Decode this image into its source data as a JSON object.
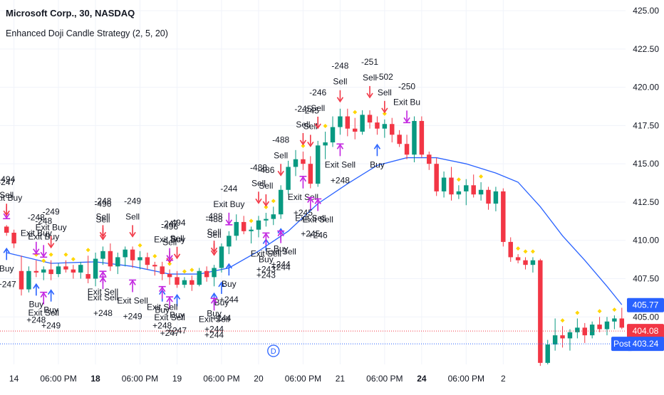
{
  "header": {
    "title": "Microsoft Corp., 30, NASDAQ",
    "subtitle": "Enhanced Doji Candle Strategy (2, 5, 20)"
  },
  "chart_data": {
    "type": "candlestick",
    "title": "Microsoft Corp., 30, NASDAQ",
    "subtitle": "Enhanced Doji Candle Strategy (2, 5, 20)",
    "y_axis": {
      "position": "right",
      "range": [
        401.9,
        425.7
      ],
      "ticks": [
        425.0,
        422.5,
        420.0,
        417.5,
        415.0,
        412.5,
        410.0,
        407.5,
        405.0
      ],
      "tick_labels": [
        "425.00",
        "422.50",
        "420.00",
        "417.50",
        "415.00",
        "412.50",
        "410.00",
        "407.50",
        "405.00"
      ]
    },
    "x_axis": {
      "labels": [
        {
          "text": "14",
          "bar": 1,
          "bold": false
        },
        {
          "text": "06:00 PM",
          "bar": 7,
          "bold": false
        },
        {
          "text": "18",
          "bar": 12,
          "bold": true
        },
        {
          "text": "06:00 PM",
          "bar": 18,
          "bold": false
        },
        {
          "text": "19",
          "bar": 23,
          "bold": false
        },
        {
          "text": "06:00 PM",
          "bar": 29,
          "bold": false
        },
        {
          "text": "20",
          "bar": 34,
          "bold": false
        },
        {
          "text": "06:00 PM",
          "bar": 40,
          "bold": false
        },
        {
          "text": "21",
          "bar": 45,
          "bold": false
        },
        {
          "text": "06:00 PM",
          "bar": 51,
          "bold": false
        },
        {
          "text": "24",
          "bar": 56,
          "bold": true
        },
        {
          "text": "06:00 PM",
          "bar": 62,
          "bold": false
        },
        {
          "text": "2",
          "bar": 67,
          "bold": false
        }
      ]
    },
    "candles": [
      [
        410.9,
        411.0,
        410.3,
        410.5
      ],
      [
        410.5,
        410.7,
        409.5,
        409.8
      ],
      [
        408.0,
        409.0,
        406.4,
        406.8
      ],
      [
        406.8,
        408.3,
        406.6,
        408.0
      ],
      [
        408.0,
        408.7,
        407.6,
        407.9
      ],
      [
        407.9,
        408.3,
        407.4,
        408.1
      ],
      [
        408.1,
        408.7,
        407.4,
        407.8
      ],
      [
        407.8,
        408.5,
        407.6,
        408.3
      ],
      [
        408.3,
        408.7,
        407.9,
        408.1
      ],
      [
        408.1,
        408.4,
        407.5,
        407.9
      ],
      [
        407.9,
        408.6,
        407.5,
        408.4
      ],
      [
        407.8,
        409.0,
        407.2,
        407.5
      ],
      [
        407.5,
        409.2,
        407.0,
        408.8
      ],
      [
        408.8,
        409.6,
        408.4,
        409.3
      ],
      [
        409.3,
        409.8,
        408.0,
        408.3
      ],
      [
        408.3,
        409.2,
        407.8,
        408.9
      ],
      [
        408.9,
        409.6,
        408.3,
        409.4
      ],
      [
        409.4,
        409.6,
        408.2,
        408.7
      ],
      [
        408.7,
        409.3,
        408.1,
        408.9
      ],
      [
        408.9,
        409.2,
        408.1,
        408.4
      ],
      [
        408.4,
        408.6,
        407.7,
        408.3
      ],
      [
        408.3,
        408.6,
        407.4,
        407.8
      ],
      [
        407.8,
        408.1,
        407.1,
        407.6
      ],
      [
        407.6,
        408.0,
        406.9,
        407.1
      ],
      [
        407.1,
        407.6,
        406.9,
        407.4
      ],
      [
        407.4,
        407.7,
        406.7,
        407.1
      ],
      [
        407.1,
        408.2,
        407.0,
        408.0
      ],
      [
        408.0,
        408.3,
        407.3,
        407.6
      ],
      [
        407.6,
        408.4,
        407.0,
        408.2
      ],
      [
        408.2,
        409.8,
        407.9,
        409.6
      ],
      [
        409.6,
        410.6,
        409.1,
        410.3
      ],
      [
        410.3,
        411.7,
        410.0,
        411.2
      ],
      [
        411.2,
        411.6,
        410.4,
        410.6
      ],
      [
        410.6,
        410.9,
        409.8,
        410.7
      ],
      [
        410.7,
        411.6,
        410.2,
        411.3
      ],
      [
        411.3,
        411.8,
        410.9,
        411.4
      ],
      [
        411.4,
        412.2,
        411.0,
        411.7
      ],
      [
        411.7,
        413.6,
        411.4,
        413.3
      ],
      [
        413.3,
        415.2,
        413.0,
        414.8
      ],
      [
        414.8,
        415.9,
        414.2,
        415.3
      ],
      [
        415.3,
        415.8,
        414.6,
        415.0
      ],
      [
        415.0,
        415.5,
        413.4,
        413.7
      ],
      [
        413.7,
        416.5,
        413.5,
        416.2
      ],
      [
        416.2,
        417.1,
        415.3,
        416.4
      ],
      [
        416.4,
        418.1,
        416.1,
        417.4
      ],
      [
        417.4,
        418.6,
        416.9,
        418.1
      ],
      [
        418.1,
        418.6,
        416.8,
        417.3
      ],
      [
        417.3,
        418.0,
        416.6,
        417.1
      ],
      [
        417.1,
        418.5,
        416.9,
        418.2
      ],
      [
        418.2,
        418.5,
        417.3,
        417.7
      ],
      [
        417.7,
        418.1,
        416.9,
        417.3
      ],
      [
        417.3,
        417.9,
        416.7,
        417.6
      ],
      [
        417.6,
        418.0,
        416.4,
        416.9
      ],
      [
        416.9,
        417.2,
        416.1,
        416.3
      ],
      [
        416.3,
        416.9,
        415.3,
        415.6
      ],
      [
        415.6,
        418.1,
        415.1,
        417.8
      ],
      [
        417.8,
        418.1,
        415.4,
        415.6
      ],
      [
        415.6,
        415.8,
        414.6,
        415.0
      ],
      [
        415.0,
        415.4,
        412.9,
        413.2
      ],
      [
        413.2,
        414.5,
        412.8,
        414.1
      ],
      [
        414.1,
        414.8,
        412.6,
        413.0
      ],
      [
        413.0,
        413.6,
        412.7,
        413.2
      ],
      [
        413.2,
        414.0,
        412.3,
        413.6
      ],
      [
        413.6,
        414.3,
        412.8,
        413.0
      ],
      [
        413.0,
        413.8,
        412.6,
        413.3
      ],
      [
        413.3,
        413.5,
        412.0,
        412.4
      ],
      [
        412.4,
        413.5,
        411.9,
        413.2
      ],
      [
        413.2,
        413.4,
        409.6,
        409.9
      ],
      [
        409.9,
        410.2,
        408.6,
        408.9
      ],
      [
        408.9,
        409.1,
        408.5,
        408.7
      ],
      [
        408.7,
        408.9,
        408.1,
        408.4
      ],
      [
        408.4,
        408.9,
        407.9,
        408.7
      ],
      [
        408.7,
        408.8,
        401.8,
        402.0
      ],
      [
        402.0,
        403.5,
        401.9,
        403.2
      ],
      [
        403.2,
        404.9,
        402.8,
        403.8
      ],
      [
        403.8,
        404.4,
        403.0,
        403.6
      ],
      [
        403.6,
        404.2,
        402.8,
        404.0
      ],
      [
        404.0,
        404.9,
        403.6,
        404.3
      ],
      [
        404.3,
        404.6,
        403.3,
        403.8
      ],
      [
        403.8,
        404.7,
        403.6,
        404.5
      ],
      [
        404.5,
        405.0,
        404.0,
        404.2
      ],
      [
        404.2,
        405.0,
        403.8,
        404.7
      ],
      [
        404.7,
        405.1,
        404.2,
        404.9
      ],
      [
        404.9,
        405.6,
        404.2,
        404.3
      ]
    ],
    "moving_average_line": {
      "color": "#2962ff",
      "points": [
        [
          0,
          409.2
        ],
        [
          6,
          408.5
        ],
        [
          12,
          408.6
        ],
        [
          17,
          408.3
        ],
        [
          22,
          407.8
        ],
        [
          26,
          407.8
        ],
        [
          30,
          408.2
        ],
        [
          34,
          409.3
        ],
        [
          38,
          410.6
        ],
        [
          42,
          412.4
        ],
        [
          46,
          413.7
        ],
        [
          50,
          414.9
        ],
        [
          54,
          415.4
        ],
        [
          58,
          415.4
        ],
        [
          62,
          415.0
        ],
        [
          66,
          414.4
        ],
        [
          69,
          413.8
        ],
        [
          72,
          412.2
        ],
        [
          75,
          410.3
        ],
        [
          78,
          408.7
        ],
        [
          81,
          407.0
        ],
        [
          83,
          405.8
        ]
      ]
    },
    "signals": [
      {
        "bar": 0,
        "type": "exit-buy-down",
        "lines": [
          "-247",
          "Exit Buy"
        ]
      },
      {
        "bar": 0,
        "type": "sell-down",
        "lines": [
          "-494",
          "Sell"
        ]
      },
      {
        "bar": 0,
        "type": "buy-up",
        "lines": [
          "Buy",
          "+247"
        ]
      },
      {
        "bar": 4,
        "type": "exit-buy-down",
        "lines": [
          "-248",
          "Exit Buy"
        ]
      },
      {
        "bar": 5,
        "type": "exit-buy-down",
        "lines": [
          "-248",
          "Exit Buy"
        ]
      },
      {
        "bar": 6,
        "type": "sell-down",
        "lines": [
          "-249",
          "Exit Buy"
        ]
      },
      {
        "bar": 4,
        "type": "buy-up",
        "lines": [
          "Buy",
          "+248"
        ]
      },
      {
        "bar": 6,
        "type": "buy-up",
        "lines": [
          "Buy",
          "+249"
        ]
      },
      {
        "bar": 5,
        "type": "exit-sell-up",
        "lines": [
          "Exit Sell"
        ]
      },
      {
        "bar": 13,
        "type": "sell-down",
        "lines": [
          "-496",
          "Sell"
        ]
      },
      {
        "bar": 13,
        "type": "sell-down",
        "lines": [
          "-248",
          "Sell"
        ]
      },
      {
        "bar": 13,
        "type": "exit-sell-up",
        "lines": [
          "Exit Sell",
          "+248"
        ]
      },
      {
        "bar": 13,
        "type": "exit-sell-up",
        "lines": [
          "Exit Sell"
        ]
      },
      {
        "bar": 17,
        "type": "sell-down",
        "lines": [
          "-249",
          "Sell"
        ]
      },
      {
        "bar": 17,
        "type": "exit-sell-up",
        "lines": [
          "Exit Sell",
          "+249"
        ]
      },
      {
        "bar": 22,
        "type": "sell-down",
        "lines": [
          "-496",
          "Sell"
        ]
      },
      {
        "bar": 22,
        "type": "exit-buy-down",
        "lines": [
          "-247",
          "Exit Buy"
        ]
      },
      {
        "bar": 23,
        "type": "sell-down",
        "lines": [
          "-494",
          "Sell"
        ]
      },
      {
        "bar": 23,
        "type": "buy-up",
        "lines": [
          "Buy",
          "+247"
        ]
      },
      {
        "bar": 21,
        "type": "buy-up",
        "lines": [
          "Buy",
          "+248"
        ]
      },
      {
        "bar": 22,
        "type": "exit-sell-up",
        "lines": [
          "Exit Sell",
          "+247"
        ]
      },
      {
        "bar": 21,
        "type": "exit-sell-up",
        "lines": [
          "Exit Sell"
        ]
      },
      {
        "bar": 28,
        "type": "sell-down",
        "lines": [
          "-488",
          "Sell"
        ]
      },
      {
        "bar": 28,
        "type": "sell-down",
        "lines": [
          "-488",
          "Sell"
        ]
      },
      {
        "bar": 28,
        "type": "buy-up",
        "lines": [
          "Buy",
          "+244"
        ]
      },
      {
        "bar": 29,
        "type": "buy-up",
        "lines": [
          "Buy",
          "+244"
        ]
      },
      {
        "bar": 28,
        "type": "exit-sell-up",
        "lines": [
          "Exit Sell",
          "+244"
        ]
      },
      {
        "bar": 30,
        "type": "exit-buy-down",
        "lines": [
          "-244",
          "Exit Buy"
        ]
      },
      {
        "bar": 30,
        "type": "buy-up",
        "lines": [
          "Buy",
          "+244"
        ]
      },
      {
        "bar": 34,
        "type": "sell-down",
        "lines": [
          "-488",
          "Sell"
        ]
      },
      {
        "bar": 35,
        "type": "sell-down",
        "lines": [
          "-486",
          "Sell"
        ]
      },
      {
        "bar": 37,
        "type": "sell-down",
        "lines": [
          "-488",
          "Sell"
        ]
      },
      {
        "bar": 35,
        "type": "buy-up",
        "lines": [
          "Buy",
          "+243"
        ]
      },
      {
        "bar": 35,
        "type": "exit-sell-up",
        "lines": [
          "Exit Sell",
          "+243"
        ]
      },
      {
        "bar": 37,
        "type": "buy-up",
        "lines": [
          "Buy",
          "+244"
        ]
      },
      {
        "bar": 37,
        "type": "exit-sell-up",
        "lines": [
          "Exit Sell",
          "+244"
        ]
      },
      {
        "bar": 40,
        "type": "sell-down",
        "lines": [
          "-245",
          "Sell"
        ]
      },
      {
        "bar": 41,
        "type": "sell-down",
        "lines": [
          "-245",
          "Sell"
        ]
      },
      {
        "bar": 42,
        "type": "sell-down",
        "lines": [
          "-246",
          "Sell"
        ]
      },
      {
        "bar": 40,
        "type": "exit-sell-up",
        "lines": [
          "Exit Sell",
          "+245"
        ]
      },
      {
        "bar": 41,
        "type": "exit-sell-up",
        "lines": [
          "Exit Sell",
          "+245"
        ]
      },
      {
        "bar": 42,
        "type": "exit-sell-up",
        "lines": [
          "Exit Sell",
          "+246"
        ]
      },
      {
        "bar": 45,
        "type": "sell-down",
        "lines": [
          "-248",
          "Sell"
        ]
      },
      {
        "bar": 45,
        "type": "exit-sell-up",
        "lines": [
          "Exit Sell",
          "+248"
        ]
      },
      {
        "bar": 49,
        "type": "sell-down",
        "lines": [
          "-251",
          "Sell"
        ]
      },
      {
        "bar": 51,
        "type": "sell-down",
        "lines": [
          "-502",
          "Sell"
        ]
      },
      {
        "bar": 50,
        "type": "buy-up",
        "lines": [
          "Buy"
        ]
      },
      {
        "bar": 54,
        "type": "exit-buy-down",
        "lines": [
          "-250",
          "Exit Bu"
        ]
      }
    ],
    "current_price": 404.08,
    "price_labels": [
      {
        "value": 405.77,
        "text": "405.77",
        "color": "#2962ff"
      },
      {
        "value": 404.08,
        "text": "404.08",
        "color": "#f23645"
      },
      {
        "value": 403.24,
        "text": "403.24",
        "color": "#2962ff"
      }
    ],
    "post_badge": "Post",
    "marker_letter": "D",
    "colors": {
      "up": "#089981",
      "down": "#f23645",
      "ma": "#2962ff",
      "buy_arrow": "#2962ff",
      "sell_arrow": "#f23645",
      "exit_arrow": "#c224e0",
      "doji_diamond": "#ffd600",
      "grid": "#f0f3fa"
    }
  }
}
